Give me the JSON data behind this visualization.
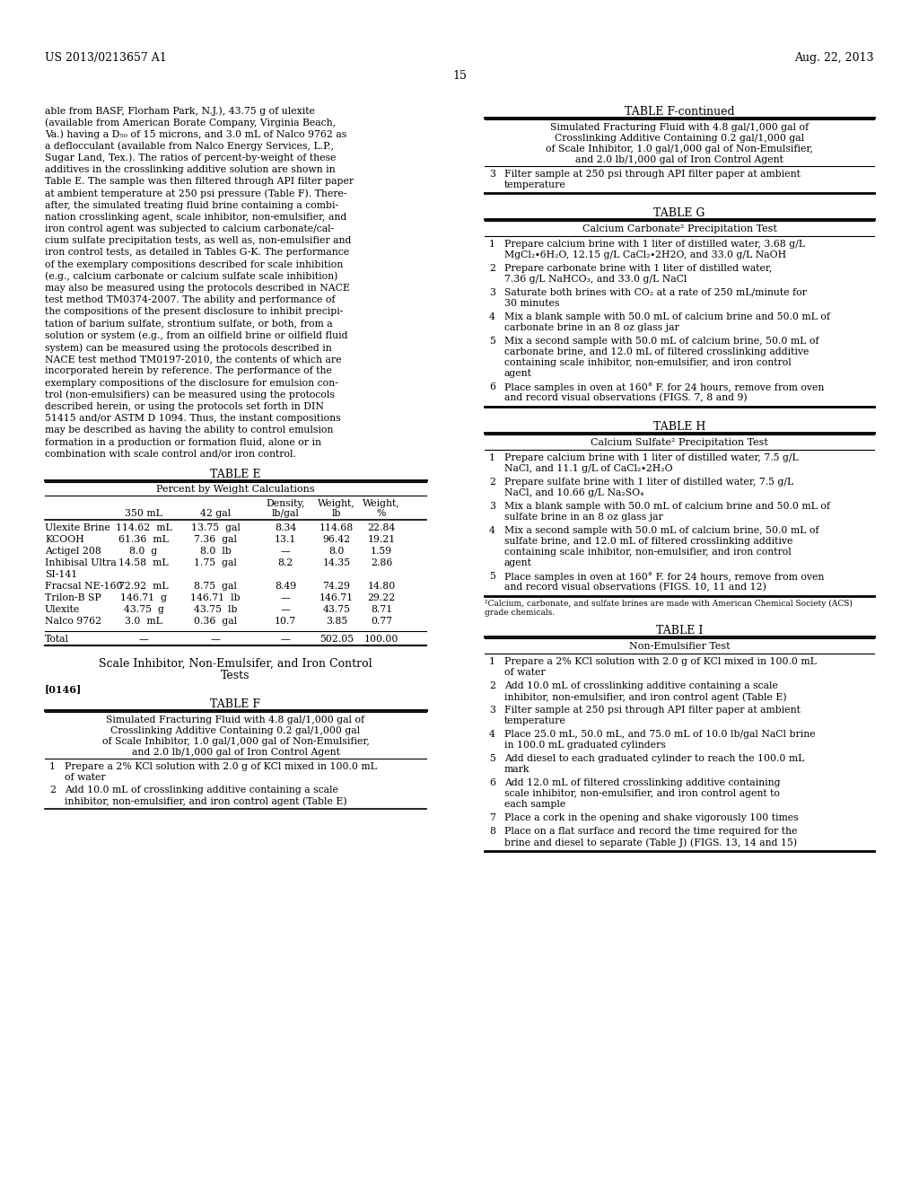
{
  "bg_color": "#ffffff",
  "header_left": "US 2013/0213657 A1",
  "header_right": "Aug. 22, 2013",
  "page_num": "15",
  "left_col_text": [
    "able from BASF, Florham Park, N.J.), 43.75 g of ulexite",
    "(available from American Borate Company, Virginia Beach,",
    "Va.) having a D₅₀ of 15 microns, and 3.0 mL of Nalco 9762 as",
    "a deflocculant (available from Nalco Energy Services, L.P.,",
    "Sugar Land, Tex.). The ratios of percent-by-weight of these",
    "additives in the crosslinking additive solution are shown in",
    "Table E. The sample was then filtered through API filter paper",
    "at ambient temperature at 250 psi pressure (Table F). There-",
    "after, the simulated treating fluid brine containing a combi-",
    "nation crosslinking agent, scale inhibitor, non-emulsifier, and",
    "iron control agent was subjected to calcium carbonate/cal-",
    "cium sulfate precipitation tests, as well as, non-emulsifier and",
    "iron control tests, as detailed in Tables G-K. The performance",
    "of the exemplary compositions described for scale inhibition",
    "(e.g., calcium carbonate or calcium sulfate scale inhibition)",
    "may also be measured using the protocols described in NACE",
    "test method TM0374-2007. The ability and performance of",
    "the compositions of the present disclosure to inhibit precipi-",
    "tation of barium sulfate, strontium sulfate, or both, from a",
    "solution or system (e.g., from an oilfield brine or oilfield fluid",
    "system) can be measured using the protocols described in",
    "NACE test method TM0197-2010, the contents of which are",
    "incorporated herein by reference. The performance of the",
    "exemplary compositions of the disclosure for emulsion con-",
    "trol (non-emulsifiers) can be measured using the protocols",
    "described herein, or using the protocols set forth in DIN",
    "51415 and/or ASTM D 1094. Thus, the instant compositions",
    "may be described as having the ability to control emulsion",
    "formation in a production or formation fluid, alone or in",
    "combination with scale control and/or iron control."
  ],
  "table_e_title": "TABLE E",
  "table_e_subtitle": "Percent by Weight Calculations",
  "table_e_col_headers": [
    "",
    "350 mL",
    "42 gal",
    "Density,\nlb/gal",
    "Weight,\nlb",
    "Weight,\n%"
  ],
  "table_e_rows": [
    [
      "Ulexite Brine",
      "114.62  mL",
      "13.75  gal",
      "8.34",
      "114.68",
      "22.84"
    ],
    [
      "KCOOH",
      "61.36  mL",
      "7.36  gal",
      "13.1",
      "96.42",
      "19.21"
    ],
    [
      "Actigel 208",
      "8.0  g",
      "8.0  lb",
      "—",
      "8.0",
      "1.59"
    ],
    [
      "Inhibisal Ultra",
      "14.58  mL",
      "1.75  gal",
      "8.2",
      "14.35",
      "2.86"
    ],
    [
      "SI-141",
      "",
      "",
      "",
      "",
      ""
    ],
    [
      "Fracsal NE-160",
      "72.92  mL",
      "8.75  gal",
      "8.49",
      "74.29",
      "14.80"
    ],
    [
      "Trilon-B SP",
      "146.71  g",
      "146.71  lb",
      "—",
      "146.71",
      "29.22"
    ],
    [
      "Ulexite",
      "43.75  g",
      "43.75  lb",
      "—",
      "43.75",
      "8.71"
    ],
    [
      "Nalco 9762",
      "3.0  mL",
      "0.36  gal",
      "10.7",
      "3.85",
      "0.77"
    ]
  ],
  "table_e_total": [
    "Total",
    "—",
    "—",
    "—",
    "502.05",
    "100.00"
  ],
  "section_heading_line1": "Scale Inhibitor, Non-Emulsifer, and Iron Control",
  "section_heading_line2": "Tests",
  "para_0146": "[0146]",
  "table_f_title": "TABLE F",
  "table_f_subtitle_lines": [
    "Simulated Fracturing Fluid with 4.8 gal/1,000 gal of",
    "Crosslinking Additive Containing 0.2 gal/1,000 gal",
    "of Scale Inhibitor, 1.0 gal/1,000 gal of Non-Emulsifier,",
    "and 2.0 lb/1,000 gal of Iron Control Agent"
  ],
  "table_f_items": [
    [
      "1",
      "Prepare a 2% KCl solution with 2.0 g of KCl mixed in 100.0 mL",
      "of water"
    ],
    [
      "2",
      "Add 10.0 mL of crosslinking additive containing a scale",
      "inhibitor, non-emulsifier, and iron control agent (Table E)"
    ]
  ],
  "table_f_continued_title": "TABLE F-continued",
  "table_f_continued_subtitle_lines": [
    "Simulated Fracturing Fluid with 4.8 gal/1,000 gal of",
    "Crosslinking Additive Containing 0.2 gal/1,000 gal",
    "of Scale Inhibitor, 1.0 gal/1,000 gal of Non-Emulsifier,",
    "and 2.0 lb/1,000 gal of Iron Control Agent"
  ],
  "table_f_continued_items": [
    [
      "3",
      "Filter sample at 250 psi through API filter paper at ambient",
      "temperature"
    ]
  ],
  "table_g_title": "TABLE G",
  "table_g_subtitle": "Calcium Carbonate² Precipitation Test",
  "table_g_items": [
    [
      "1",
      "Prepare calcium brine with 1 liter of distilled water, 3.68 g/L",
      "MgCl₂∙6H₂O, 12.15 g/L CaCl₂∙2H2O, and 33.0 g/L NaOH"
    ],
    [
      "2",
      "Prepare carbonate brine with 1 liter of distilled water,",
      "7.36 g/L NaHCO₃, and 33.0 g/L NaCl"
    ],
    [
      "3",
      "Saturate both brines with CO₂ at a rate of 250 mL/minute for",
      "30 minutes"
    ],
    [
      "4",
      "Mix a blank sample with 50.0 mL of calcium brine and 50.0 mL of",
      "carbonate brine in an 8 oz glass jar"
    ],
    [
      "5",
      "Mix a second sample with 50.0 mL of calcium brine, 50.0 mL of",
      "carbonate brine, and 12.0 mL of filtered crosslinking additive",
      "containing scale inhibitor, non-emulsifier, and iron control",
      "agent"
    ],
    [
      "6",
      "Place samples in oven at 160° F. for 24 hours, remove from oven",
      "and record visual observations (FIGS. 7, 8 and 9)"
    ]
  ],
  "table_h_title": "TABLE H",
  "table_h_subtitle": "Calcium Sulfate² Precipitation Test",
  "table_h_items": [
    [
      "1",
      "Prepare calcium brine with 1 liter of distilled water, 7.5 g/L",
      "NaCl, and 11.1 g/L of CaCl₂∙2H₂O"
    ],
    [
      "2",
      "Prepare sulfate brine with 1 liter of distilled water, 7.5 g/L",
      "NaCl, and 10.66 g/L Na₂SO₄"
    ],
    [
      "3",
      "Mix a blank sample with 50.0 mL of calcium brine and 50.0 mL of",
      "sulfate brine in an 8 oz glass jar"
    ],
    [
      "4",
      "Mix a second sample with 50.0 mL of calcium brine, 50.0 mL of",
      "sulfate brine, and 12.0 mL of filtered crosslinking additive",
      "containing scale inhibitor, non-emulsifier, and iron control",
      "agent"
    ],
    [
      "5",
      "Place samples in oven at 160° F. for 24 hours, remove from oven",
      "and record visual observations (FIGS. 10, 11 and 12)"
    ]
  ],
  "table_h_footnote_lines": [
    "²Calcium, carbonate, and sulfate brines are made with American Chemical Society (ACS)",
    "grade chemicals."
  ],
  "table_i_title": "TABLE I",
  "table_i_subtitle": "Non-Emulsifier Test",
  "table_i_items": [
    [
      "1",
      "Prepare a 2% KCl solution with 2.0 g of KCl mixed in 100.0 mL",
      "of water"
    ],
    [
      "2",
      "Add 10.0 mL of crosslinking additive containing a scale",
      "inhibitor, non-emulsifier, and iron control agent (Table E)"
    ],
    [
      "3",
      "Filter sample at 250 psi through API filter paper at ambient",
      "temperature"
    ],
    [
      "4",
      "Place 25.0 mL, 50.0 mL, and 75.0 mL of 10.0 lb/gal NaCl brine",
      "in 100.0 mL graduated cylinders"
    ],
    [
      "5",
      "Add diesel to each graduated cylinder to reach the 100.0 mL",
      "mark"
    ],
    [
      "6",
      "Add 12.0 mL of filtered crosslinking additive containing",
      "scale inhibitor, non-emulsifier, and iron control agent to",
      "each sample"
    ],
    [
      "7",
      "Place a cork in the opening and shake vigorously 100 times"
    ],
    [
      "8",
      "Place on a flat surface and record the time required for the",
      "brine and diesel to separate (Table J) (FIGS. 13, 14 and 15)"
    ]
  ]
}
